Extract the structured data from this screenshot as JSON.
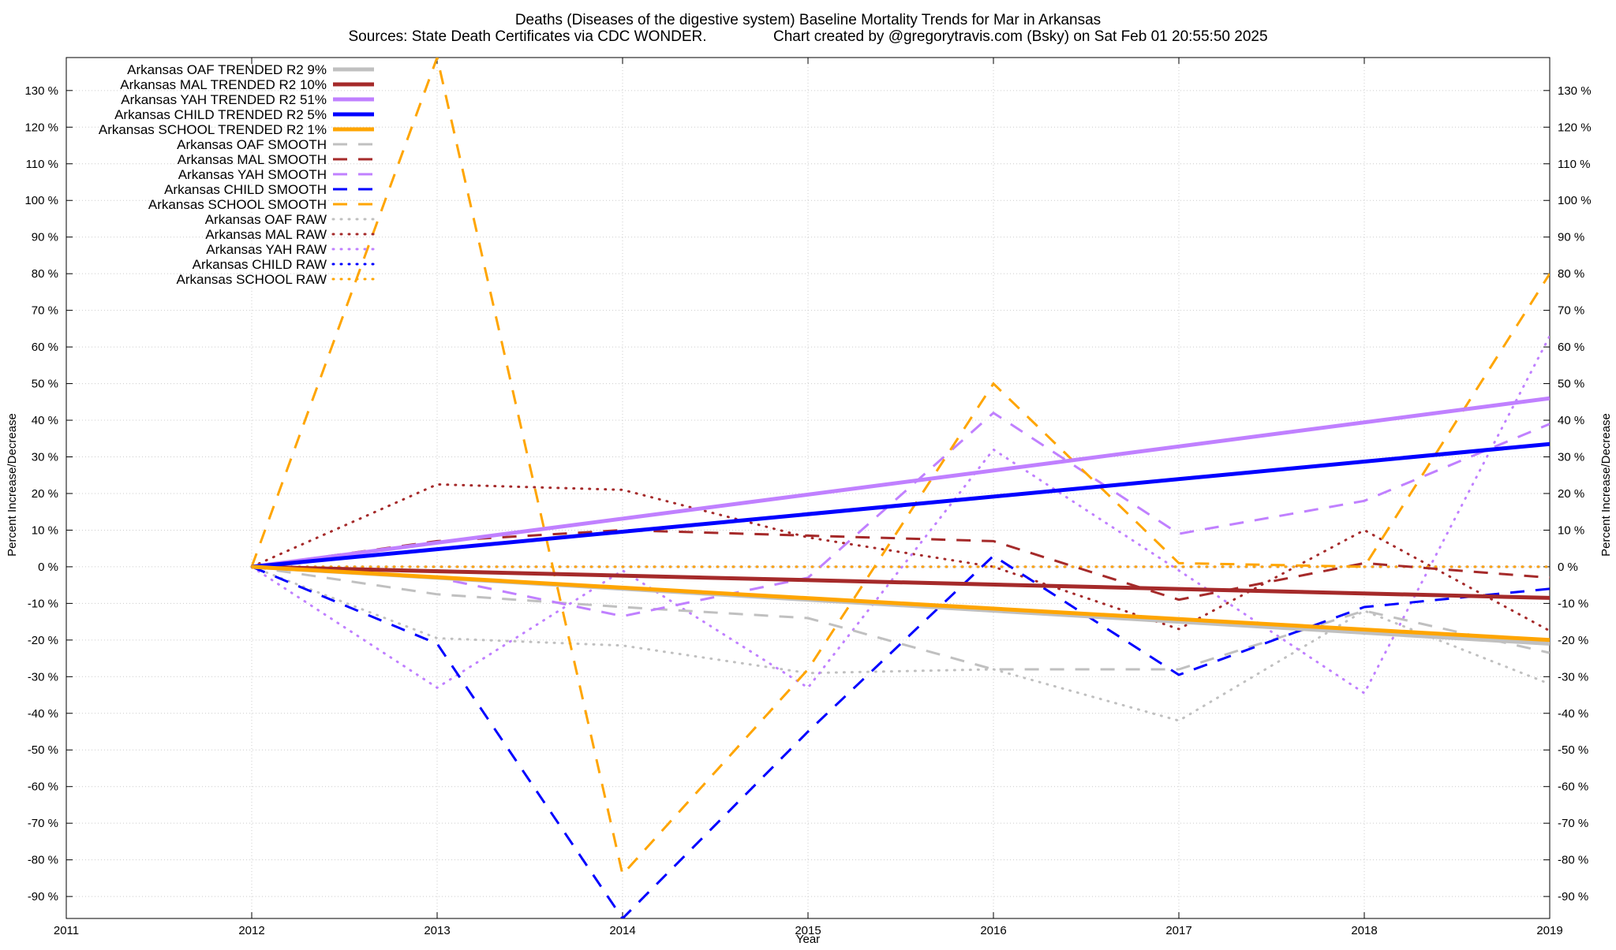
{
  "chart_data": {
    "type": "line",
    "title": "Deaths (Diseases of the digestive system)  Baseline Mortality Trends for Mar in Arkansas",
    "subtitle": "Sources: State Death Certificates via CDC WONDER.                Chart created by @gregorytravis.com (Bsky) on Sat Feb 01 20:55:50 2025",
    "xlabel": "Year",
    "ylabel": "Percent Increase/Decrease",
    "y2label": "Percent Increase/Decrease",
    "xlim": [
      2011,
      2019
    ],
    "ylim": [
      -96,
      139
    ],
    "x_ticks": [
      2011,
      2012,
      2013,
      2014,
      2015,
      2016,
      2017,
      2018,
      2019
    ],
    "y_ticks": [
      130,
      120,
      110,
      100,
      90,
      80,
      70,
      60,
      50,
      40,
      30,
      20,
      10,
      0,
      -10,
      -20,
      -30,
      -40,
      -50,
      -60,
      -70,
      -80,
      -90
    ],
    "y_tick_labels_left": [
      "130 %",
      "120 %",
      "110 %",
      "100 %",
      "90 %",
      "80 %",
      "70 %",
      "60 %",
      "50 %",
      "40 %",
      "30 %",
      "20 %",
      "10 %",
      "0 %",
      "-10 %",
      "-20 %",
      "-30 %",
      "-40 %",
      "-50 %",
      "-60 %",
      "-70 %",
      "-80 %",
      "-90 %"
    ],
    "y_tick_labels_right": [
      "130 %",
      "120 %",
      "110 %",
      "100 %",
      "90 %",
      "80 %",
      "70 %",
      "60 %",
      "50 %",
      "40 %",
      "30 %",
      "20 %",
      "10 %",
      "0 %",
      "-10 %",
      "-20 %",
      "-30 %",
      "-40 %",
      "-50 %",
      "-60 %",
      "-70 %",
      "-80 %",
      "-90 %"
    ],
    "grid": true,
    "legend_position": "top-left",
    "series": [
      {
        "name": "Arkansas OAF TRENDED R2   9%",
        "color": "#c0c0c0",
        "style": "trend",
        "x": [
          2012,
          2019
        ],
        "y": [
          0,
          -21
        ]
      },
      {
        "name": "Arkansas MAL TRENDED R2  10%",
        "color": "#a52a2a",
        "style": "trend",
        "x": [
          2012,
          2019
        ],
        "y": [
          0,
          -8.5
        ]
      },
      {
        "name": "Arkansas YAH TRENDED R2  51%",
        "color": "#c080ff",
        "style": "trend",
        "x": [
          2012,
          2019
        ],
        "y": [
          0,
          46
        ]
      },
      {
        "name": "Arkansas CHILD TRENDED R2   5%",
        "color": "#0000ff",
        "style": "trend",
        "x": [
          2012,
          2019
        ],
        "y": [
          0,
          33.5
        ]
      },
      {
        "name": "Arkansas SCHOOL TRENDED R2   1%",
        "color": "#ffa500",
        "style": "trend",
        "x": [
          2012,
          2019
        ],
        "y": [
          0,
          -20
        ]
      },
      {
        "name": "Arkansas OAF SMOOTH",
        "color": "#c0c0c0",
        "style": "smooth",
        "x": [
          2012,
          2013,
          2014,
          2015,
          2016,
          2017,
          2018,
          2019
        ],
        "y": [
          0,
          -7.5,
          -11,
          -14,
          -28,
          -28,
          -12,
          -23.5
        ]
      },
      {
        "name": "Arkansas MAL SMOOTH",
        "color": "#a52a2a",
        "style": "smooth",
        "x": [
          2012,
          2013,
          2014,
          2015,
          2016,
          2017,
          2018,
          2019
        ],
        "y": [
          0,
          7,
          10,
          8.5,
          7,
          -9,
          1,
          -3
        ]
      },
      {
        "name": "Arkansas YAH SMOOTH",
        "color": "#c080ff",
        "style": "smooth",
        "x": [
          2012,
          2013,
          2014,
          2015,
          2016,
          2017,
          2018,
          2019
        ],
        "y": [
          0,
          -3,
          -13.5,
          -3,
          42,
          9,
          18,
          39
        ]
      },
      {
        "name": "Arkansas CHILD SMOOTH",
        "color": "#0000ff",
        "style": "smooth",
        "x": [
          2012,
          2013,
          2014,
          2015,
          2016,
          2017,
          2018,
          2019
        ],
        "y": [
          0,
          -21,
          -96,
          -45,
          3,
          -29.5,
          -11,
          -6
        ]
      },
      {
        "name": "Arkansas SCHOOL SMOOTH",
        "color": "#ffa500",
        "style": "smooth",
        "x": [
          2012,
          2013,
          2014,
          2015,
          2016,
          2017,
          2018,
          2019
        ],
        "y": [
          0,
          139,
          -84,
          -28,
          50,
          1,
          0,
          80
        ]
      },
      {
        "name": "Arkansas OAF RAW",
        "color": "#c0c0c0",
        "style": "raw",
        "x": [
          2012,
          2013,
          2014,
          2015,
          2016,
          2017,
          2018,
          2019
        ],
        "y": [
          0,
          -19.5,
          -21.5,
          -29,
          -28,
          -42,
          -12,
          -32
        ]
      },
      {
        "name": "Arkansas MAL RAW",
        "color": "#a52a2a",
        "style": "raw",
        "x": [
          2012,
          2013,
          2014,
          2015,
          2016,
          2017,
          2018,
          2019
        ],
        "y": [
          0,
          22.5,
          21,
          8,
          0,
          -17,
          10,
          -17.5
        ]
      },
      {
        "name": "Arkansas YAH RAW",
        "color": "#c080ff",
        "style": "raw",
        "x": [
          2012,
          2013,
          2014,
          2015,
          2016,
          2017,
          2018,
          2019
        ],
        "y": [
          0,
          -33,
          -1,
          -33,
          32,
          -1,
          -34.5,
          63
        ]
      },
      {
        "name": "Arkansas CHILD RAW",
        "color": "#0000ff",
        "style": "raw",
        "x": [
          2012,
          2019
        ],
        "y": [
          0,
          0
        ]
      },
      {
        "name": "Arkansas SCHOOL RAW",
        "color": "#ffa500",
        "style": "raw",
        "x": [
          2012,
          2019
        ],
        "y": [
          0,
          0
        ]
      }
    ]
  }
}
